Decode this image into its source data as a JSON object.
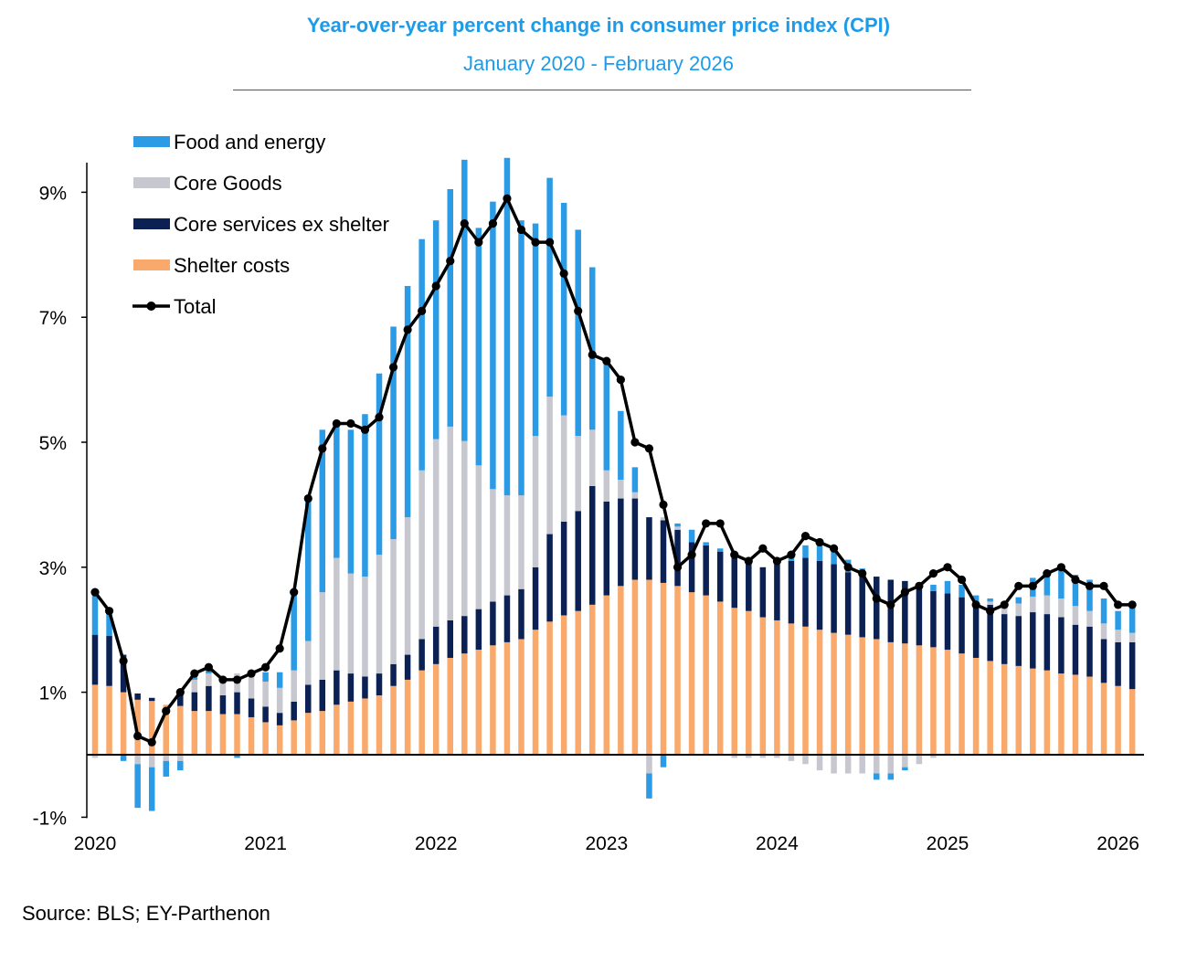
{
  "header": {
    "title": "Year-over-year percent change in consumer price index (CPI)",
    "subtitle": "January 2020 - February 2026"
  },
  "footer": {
    "source": "Source: BLS; EY-Parthenon"
  },
  "chart_data": {
    "type": "bar",
    "stacked": true,
    "title": "Year-over-year percent change in consumer price index (CPI)",
    "subtitle": "January 2020 - February 2026",
    "x_ticks": [
      "2020",
      "2021",
      "2022",
      "2023",
      "2024",
      "2025",
      "2026"
    ],
    "y_ticks": [
      "-1%",
      "1%",
      "3%",
      "5%",
      "7%",
      "9%"
    ],
    "y_tick_values": [
      -1,
      1,
      3,
      5,
      7,
      9
    ],
    "ylim": [
      -1,
      9.5
    ],
    "legend_position": "top-left",
    "colors": {
      "food_energy": "#2b9be6",
      "core_goods": "#c6c7cf",
      "core_services": "#0b2154",
      "shelter": "#f8a96b",
      "total": "#000000"
    },
    "months": [
      "Jan 2020",
      "Feb 2020",
      "Mar 2020",
      "Apr 2020",
      "May 2020",
      "Jun 2020",
      "Jul 2020",
      "Aug 2020",
      "Sep 2020",
      "Oct 2020",
      "Nov 2020",
      "Dec 2020",
      "Jan 2021",
      "Feb 2021",
      "Mar 2021",
      "Apr 2021",
      "May 2021",
      "Jun 2021",
      "Jul 2021",
      "Aug 2021",
      "Sep 2021",
      "Oct 2021",
      "Nov 2021",
      "Dec 2021",
      "Jan 2022",
      "Feb 2022",
      "Mar 2022",
      "Apr 2022",
      "May 2022",
      "Jun 2022",
      "Jul 2022",
      "Aug 2022",
      "Sep 2022",
      "Oct 2022",
      "Nov 2022",
      "Dec 2022",
      "Jan 2023",
      "Feb 2023",
      "Mar 2023",
      "Apr 2023",
      "May 2023",
      "Jun 2023",
      "Jul 2023",
      "Aug 2023",
      "Sep 2023",
      "Oct 2023",
      "Nov 2023",
      "Dec 2023",
      "Jan 2024",
      "Feb 2024",
      "Mar 2024",
      "Apr 2024",
      "May 2024",
      "Jun 2024",
      "Jul 2024",
      "Aug 2024",
      "Sep 2024",
      "Oct 2024",
      "Nov 2024",
      "Dec 2024",
      "Jan 2025",
      "Feb 2025",
      "Mar 2025",
      "Apr 2025",
      "May 2025",
      "Jun 2025",
      "Jul 2025",
      "Aug 2025",
      "Sep 2025",
      "Oct 2025",
      "Nov 2025",
      "Dec 2025",
      "Jan 2026",
      "Feb 2026"
    ],
    "series": [
      {
        "name": "Food and energy",
        "key": "food_energy",
        "values": [
          0.67,
          0.39,
          -0.1,
          -0.7,
          -0.7,
          -0.25,
          -0.15,
          0.05,
          0.05,
          0.0,
          -0.05,
          0.1,
          0.15,
          0.25,
          1.2,
          2.3,
          2.6,
          2.1,
          2.3,
          2.6,
          2.9,
          3.4,
          3.7,
          3.7,
          3.5,
          3.8,
          4.5,
          3.8,
          4.6,
          5.4,
          4.4,
          3.4,
          3.5,
          3.4,
          3.3,
          2.6,
          1.7,
          1.1,
          0.4,
          -0.4,
          -0.2,
          0.05,
          0.2,
          0.05,
          0.05,
          0.0,
          0.05,
          0.0,
          0.05,
          0.1,
          0.2,
          0.3,
          0.3,
          0.2,
          0.1,
          -0.1,
          -0.1,
          -0.05,
          0.0,
          0.1,
          0.2,
          0.2,
          0.1,
          0.05,
          0.05,
          0.1,
          0.3,
          0.4,
          0.5,
          0.5,
          0.5,
          0.4,
          0.3,
          0.4
        ]
      },
      {
        "name": "Core Goods",
        "key": "core_goods",
        "values": [
          -0.05,
          0.0,
          0.0,
          -0.15,
          -0.2,
          -0.1,
          -0.1,
          0.2,
          0.2,
          0.3,
          0.3,
          0.35,
          0.4,
          0.4,
          0.5,
          0.7,
          1.4,
          1.8,
          1.6,
          1.6,
          1.9,
          2.0,
          2.2,
          2.7,
          3.0,
          3.1,
          2.8,
          2.3,
          1.8,
          1.6,
          1.5,
          2.1,
          2.2,
          1.7,
          1.2,
          0.9,
          0.5,
          0.3,
          0.1,
          -0.3,
          0.05,
          0.05,
          0.0,
          0.0,
          0.0,
          -0.05,
          -0.05,
          -0.05,
          -0.05,
          -0.1,
          -0.15,
          -0.25,
          -0.3,
          -0.3,
          -0.3,
          -0.3,
          -0.3,
          -0.2,
          -0.15,
          -0.05,
          0.0,
          0.0,
          0.0,
          0.05,
          0.1,
          0.2,
          0.25,
          0.3,
          0.3,
          0.3,
          0.25,
          0.25,
          0.2,
          0.15
        ]
      },
      {
        "name": "Core services ex shelter",
        "key": "core_services",
        "values": [
          0.8,
          0.8,
          0.6,
          0.1,
          0.05,
          0.0,
          0.2,
          0.3,
          0.4,
          0.3,
          0.35,
          0.3,
          0.25,
          0.2,
          0.3,
          0.45,
          0.5,
          0.55,
          0.45,
          0.35,
          0.35,
          0.35,
          0.4,
          0.5,
          0.6,
          0.6,
          0.6,
          0.65,
          0.7,
          0.75,
          0.8,
          1.0,
          1.4,
          1.5,
          1.6,
          1.9,
          1.5,
          1.4,
          1.3,
          1.0,
          1.0,
          0.9,
          0.8,
          0.8,
          0.8,
          0.8,
          0.8,
          0.8,
          0.9,
          1.0,
          1.1,
          1.1,
          1.1,
          1.0,
          1.0,
          1.0,
          1.0,
          1.0,
          0.9,
          0.9,
          0.9,
          0.9,
          0.9,
          0.9,
          0.8,
          0.8,
          0.9,
          0.9,
          0.9,
          0.8,
          0.8,
          0.7,
          0.7,
          0.75
        ]
      },
      {
        "name": "Shelter costs",
        "key": "shelter",
        "values": [
          1.12,
          1.1,
          1.0,
          0.88,
          0.86,
          0.8,
          0.78,
          0.7,
          0.7,
          0.65,
          0.65,
          0.6,
          0.52,
          0.47,
          0.55,
          0.67,
          0.7,
          0.8,
          0.85,
          0.9,
          0.95,
          1.1,
          1.2,
          1.35,
          1.45,
          1.55,
          1.62,
          1.68,
          1.75,
          1.8,
          1.85,
          2.0,
          2.13,
          2.23,
          2.3,
          2.4,
          2.55,
          2.7,
          2.8,
          2.8,
          2.75,
          2.7,
          2.6,
          2.55,
          2.45,
          2.35,
          2.3,
          2.2,
          2.15,
          2.1,
          2.05,
          2.0,
          1.95,
          1.92,
          1.88,
          1.85,
          1.8,
          1.78,
          1.75,
          1.72,
          1.68,
          1.62,
          1.55,
          1.5,
          1.45,
          1.42,
          1.38,
          1.35,
          1.3,
          1.28,
          1.25,
          1.15,
          1.1,
          1.05
        ]
      },
      {
        "name": "Total",
        "key": "total",
        "type": "line",
        "values": [
          2.6,
          2.3,
          1.5,
          0.3,
          0.2,
          0.7,
          1.0,
          1.3,
          1.4,
          1.2,
          1.2,
          1.3,
          1.4,
          1.7,
          2.6,
          4.1,
          4.9,
          5.3,
          5.3,
          5.2,
          5.4,
          6.2,
          6.8,
          7.1,
          7.5,
          7.9,
          8.5,
          8.2,
          8.5,
          8.9,
          8.4,
          8.2,
          8.2,
          7.7,
          7.1,
          6.4,
          6.3,
          6.0,
          5.0,
          4.9,
          4.0,
          3.0,
          3.2,
          3.7,
          3.7,
          3.2,
          3.1,
          3.3,
          3.1,
          3.2,
          3.5,
          3.4,
          3.3,
          3.0,
          2.9,
          2.5,
          2.4,
          2.6,
          2.7,
          2.9,
          3.0,
          2.8,
          2.4,
          2.3,
          2.4,
          2.7,
          2.7,
          2.9,
          3.0,
          2.8,
          2.7,
          2.7,
          2.4,
          2.4
        ]
      }
    ]
  }
}
